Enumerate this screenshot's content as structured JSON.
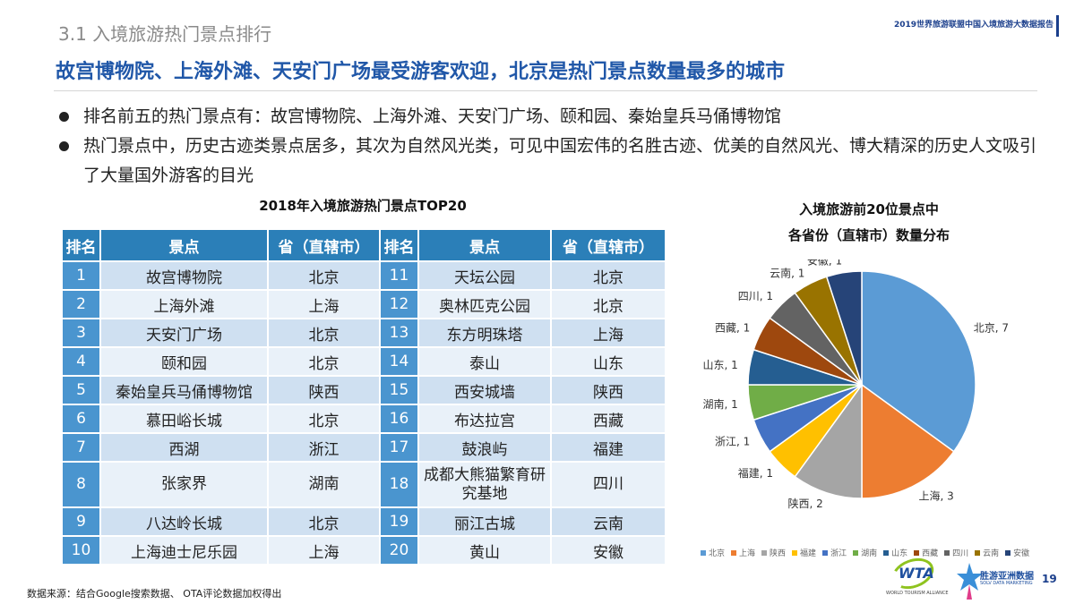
{
  "header": {
    "section_title": "3.1 入境旅游热门景点排行",
    "report_title": "2019世界旅游联盟中国入境旅游大数据报告"
  },
  "headline": "故宫博物院、上海外滩、天安门广场最受游客欢迎，北京是热门景点数量最多的城市",
  "bullets": [
    "排名前五的热门景点有：故宫博物院、上海外滩、天安门广场、颐和园、秦始皇兵马俑博物馆",
    "热门景点中，历史古迹类景点居多，其次为自然风光类，可见中国宏伟的名胜古迹、优美的自然风光、博大精深的历史人文吸引了大量国外游客的目光"
  ],
  "table": {
    "title": "2018年入境旅游热门景点TOP20",
    "headers": [
      "排名",
      "景点",
      "省（直辖市）",
      "排名",
      "景点",
      "省（直辖市）"
    ],
    "rows": [
      [
        "1",
        "故宫博物院",
        "北京",
        "11",
        "天坛公园",
        "北京"
      ],
      [
        "2",
        "上海外滩",
        "上海",
        "12",
        "奥林匹克公园",
        "北京"
      ],
      [
        "3",
        "天安门广场",
        "北京",
        "13",
        "东方明珠塔",
        "上海"
      ],
      [
        "4",
        "颐和园",
        "北京",
        "14",
        "泰山",
        "山东"
      ],
      [
        "5",
        "秦始皇兵马俑博物馆",
        "陕西",
        "15",
        "西安城墙",
        "陕西"
      ],
      [
        "6",
        "慕田峪长城",
        "北京",
        "16",
        "布达拉宫",
        "西藏"
      ],
      [
        "7",
        "西湖",
        "浙江",
        "17",
        "鼓浪屿",
        "福建"
      ],
      [
        "8",
        "张家界",
        "湖南",
        "18",
        "成都大熊猫繁育研究基地",
        "四川"
      ],
      [
        "9",
        "八达岭长城",
        "北京",
        "19",
        "丽江古城",
        "云南"
      ],
      [
        "10",
        "上海迪士尼乐园",
        "上海",
        "20",
        "黄山",
        "安徽"
      ]
    ]
  },
  "chart_data": {
    "type": "pie",
    "title": "入境旅游前20位景点中各省份（直辖市）数量分布",
    "title_lines": [
      "入境旅游前20位景点中",
      "各省份（直辖市）数量分布"
    ],
    "categories": [
      "北京",
      "上海",
      "陕西",
      "福建",
      "浙江",
      "湖南",
      "山东",
      "西藏",
      "四川",
      "云南",
      "安徽"
    ],
    "values": [
      7,
      3,
      2,
      1,
      1,
      1,
      1,
      1,
      1,
      1,
      1
    ],
    "colors": [
      "#5b9bd5",
      "#ed7d31",
      "#a5a5a5",
      "#ffc000",
      "#4472c4",
      "#70ad47",
      "#255e91",
      "#9e480e",
      "#636363",
      "#997300",
      "#264478"
    ],
    "legend_position": "bottom"
  },
  "footer": {
    "source": "数据来源：结合Google搜索数据、 OTA评论数据加权得出",
    "page_number": "19",
    "logo_wta_text": "WTA",
    "logo_wta_subtext": "WORLD TOURISM ALLIANCE",
    "logo_sb_cn": "胜游亚洲数据",
    "logo_sb_en": "SOLV DATA MARKETING"
  }
}
